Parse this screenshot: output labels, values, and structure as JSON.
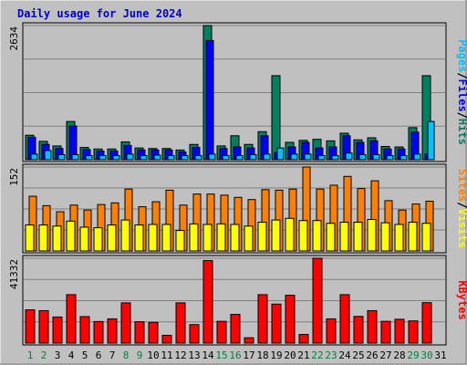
{
  "chart_data": [
    {
      "type": "bar",
      "title": "Daily usage for June 2024",
      "categories": [
        "1",
        "2",
        "3",
        "4",
        "5",
        "6",
        "7",
        "8",
        "9",
        "10",
        "11",
        "12",
        "13",
        "14",
        "15",
        "16",
        "17",
        "18",
        "19",
        "20",
        "21",
        "22",
        "23",
        "24",
        "25",
        "26",
        "27",
        "28",
        "29",
        "30",
        "31"
      ],
      "weekend_days": [
        "1",
        "2",
        "8",
        "9",
        "15",
        "16",
        "22",
        "23",
        "29",
        "30"
      ],
      "ymax_label": "2634",
      "ylim": [
        0,
        2634
      ],
      "right_label": [
        "Pages",
        "/",
        "Files",
        "/",
        "Hits"
      ],
      "series": [
        {
          "name": "Hits",
          "color": "#008060",
          "values": [
            480,
            360,
            270,
            750,
            240,
            210,
            210,
            350,
            230,
            220,
            220,
            190,
            300,
            2634,
            270,
            470,
            300,
            550,
            1650,
            340,
            380,
            400,
            370,
            520,
            390,
            430,
            260,
            250,
            630,
            1650,
            0
          ]
        },
        {
          "name": "Files",
          "color": "#0000ff",
          "values": [
            440,
            300,
            220,
            660,
            200,
            170,
            170,
            280,
            190,
            190,
            190,
            150,
            240,
            2340,
            220,
            250,
            230,
            470,
            140,
            250,
            340,
            230,
            250,
            470,
            340,
            370,
            210,
            210,
            540,
            110,
            0
          ]
        },
        {
          "name": "Pages",
          "color": "#00c0ff",
          "values": [
            110,
            180,
            100,
            100,
            80,
            80,
            80,
            110,
            80,
            90,
            80,
            80,
            80,
            110,
            80,
            80,
            100,
            110,
            230,
            110,
            110,
            80,
            80,
            130,
            100,
            100,
            80,
            80,
            110,
            750,
            0
          ]
        }
      ]
    },
    {
      "type": "bar",
      "categories": [
        "1",
        "2",
        "3",
        "4",
        "5",
        "6",
        "7",
        "8",
        "9",
        "10",
        "11",
        "12",
        "13",
        "14",
        "15",
        "16",
        "17",
        "18",
        "19",
        "20",
        "21",
        "22",
        "23",
        "24",
        "25",
        "26",
        "27",
        "28",
        "29",
        "30",
        "31"
      ],
      "ymax_label": "152",
      "ylim": [
        0,
        152
      ],
      "right_label": [
        "Sites",
        "/",
        "Visits"
      ],
      "series": [
        {
          "name": "Visits",
          "color": "#ffff00",
          "values": [
            47,
            47,
            45,
            54,
            43,
            42,
            47,
            56,
            47,
            48,
            48,
            37,
            49,
            48,
            49,
            48,
            45,
            52,
            56,
            59,
            55,
            55,
            50,
            52,
            52,
            57,
            51,
            48,
            52,
            50,
            0
          ]
        },
        {
          "name": "Sites",
          "color": "#ff8000",
          "values": [
            99,
            82,
            71,
            83,
            74,
            84,
            87,
            112,
            80,
            89,
            110,
            83,
            103,
            103,
            101,
            97,
            93,
            111,
            110,
            112,
            152,
            112,
            119,
            135,
            113,
            127,
            91,
            74,
            85,
            90,
            0
          ]
        }
      ]
    },
    {
      "type": "bar",
      "categories": [
        "1",
        "2",
        "3",
        "4",
        "5",
        "6",
        "7",
        "8",
        "9",
        "10",
        "11",
        "12",
        "13",
        "14",
        "15",
        "16",
        "17",
        "18",
        "19",
        "20",
        "21",
        "22",
        "23",
        "24",
        "25",
        "26",
        "27",
        "28",
        "29",
        "30",
        "31"
      ],
      "ymax_label": "41332",
      "ylim": [
        0,
        41332
      ],
      "right_label": [
        "KBytes"
      ],
      "series": [
        {
          "name": "KBytes",
          "color": "#ff0000",
          "values": [
            16200,
            15800,
            12700,
            23600,
            12900,
            10500,
            11800,
            19600,
            10400,
            10100,
            3800,
            19600,
            9000,
            40200,
            10600,
            14000,
            2600,
            23600,
            19000,
            23300,
            4200,
            41332,
            11800,
            23600,
            13000,
            15800,
            10600,
            11600,
            10800,
            19700,
            0
          ]
        }
      ]
    }
  ]
}
